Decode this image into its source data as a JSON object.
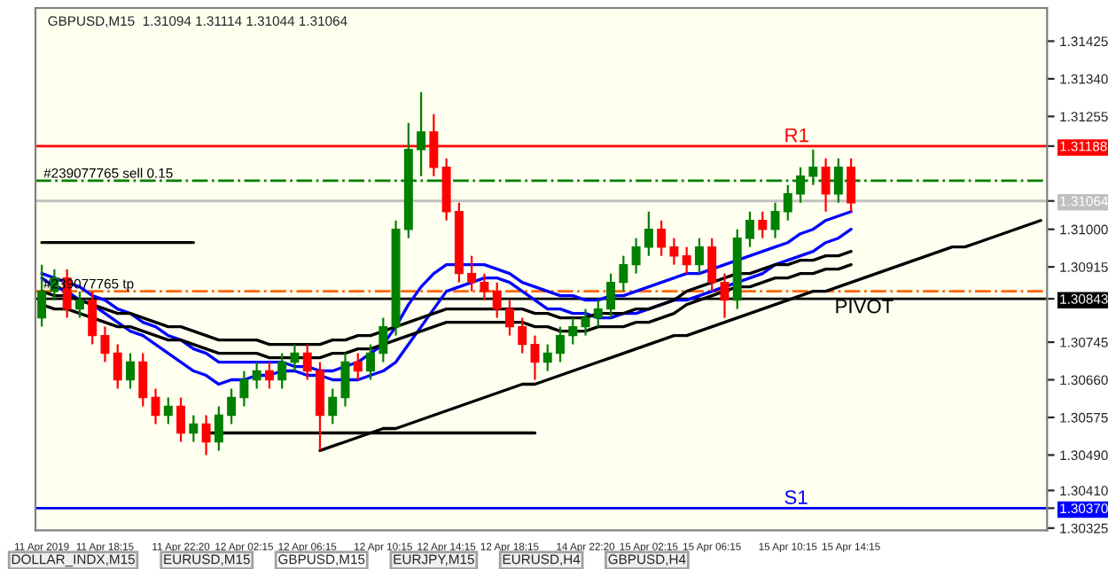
{
  "chart_data": {
    "type": "candlestick",
    "title": "GBPUSD,M15  1.31094 1.31114 1.31044 1.31064",
    "categories": [
      "11 Apr 2019",
      null,
      null,
      null,
      null,
      "11 Apr 18:15",
      null,
      null,
      null,
      null,
      null,
      "11 Apr 22:20",
      null,
      null,
      null,
      null,
      "12 Apr 02:15",
      null,
      null,
      null,
      null,
      "12 Apr 06:15",
      null,
      null,
      null,
      null,
      null,
      "12 Apr 10:15",
      null,
      null,
      null,
      null,
      "12 Apr 14:15",
      null,
      null,
      null,
      null,
      "12 Apr 18:15",
      null,
      null,
      null,
      null,
      null,
      "14 Apr 22:20",
      null,
      null,
      null,
      null,
      "15 Apr 02:15",
      null,
      null,
      null,
      null,
      "15 Apr 06:15",
      null,
      null,
      null,
      null,
      null,
      "15 Apr 10:15",
      null,
      null,
      null,
      null,
      "15 Apr 14:15",
      null,
      null,
      null,
      null,
      null,
      null,
      null,
      null,
      null,
      null,
      null,
      null,
      null,
      null,
      null
    ],
    "ohlc": [
      [
        1.308,
        1.3092,
        1.3078,
        1.3086
      ],
      [
        1.3086,
        1.3091,
        1.3084,
        1.3089
      ],
      [
        1.3089,
        1.3091,
        1.308,
        1.3082
      ],
      [
        1.3082,
        1.3086,
        1.308,
        1.3084
      ],
      [
        1.3084,
        1.3086,
        1.3074,
        1.3076
      ],
      [
        1.3076,
        1.3078,
        1.307,
        1.3072
      ],
      [
        1.3072,
        1.3074,
        1.3064,
        1.3066
      ],
      [
        1.3066,
        1.3072,
        1.3064,
        1.307
      ],
      [
        1.307,
        1.3072,
        1.306,
        1.3062
      ],
      [
        1.3062,
        1.3064,
        1.3056,
        1.3058
      ],
      [
        1.3058,
        1.3062,
        1.3056,
        1.306
      ],
      [
        1.306,
        1.3062,
        1.3052,
        1.3054
      ],
      [
        1.3054,
        1.3058,
        1.3052,
        1.3056
      ],
      [
        1.3056,
        1.3058,
        1.3049,
        1.3052
      ],
      [
        1.3052,
        1.306,
        1.305,
        1.3058
      ],
      [
        1.3058,
        1.3064,
        1.3056,
        1.3062
      ],
      [
        1.3062,
        1.3068,
        1.306,
        1.3066
      ],
      [
        1.3066,
        1.307,
        1.3064,
        1.3068
      ],
      [
        1.3068,
        1.307,
        1.3064,
        1.3066
      ],
      [
        1.3066,
        1.3072,
        1.3064,
        1.307
      ],
      [
        1.307,
        1.3074,
        1.3068,
        1.3072
      ],
      [
        1.3072,
        1.3074,
        1.3066,
        1.3068
      ],
      [
        1.3068,
        1.307,
        1.305,
        1.3058
      ],
      [
        1.3058,
        1.3064,
        1.3056,
        1.3062
      ],
      [
        1.3062,
        1.3072,
        1.306,
        1.307
      ],
      [
        1.307,
        1.3072,
        1.3066,
        1.3068
      ],
      [
        1.3068,
        1.3074,
        1.3066,
        1.3072
      ],
      [
        1.3072,
        1.308,
        1.307,
        1.3078
      ],
      [
        1.3078,
        1.3102,
        1.3076,
        1.31
      ],
      [
        1.31,
        1.3124,
        1.3098,
        1.3118
      ],
      [
        1.3118,
        1.3131,
        1.3112,
        1.3122
      ],
      [
        1.3122,
        1.3126,
        1.3112,
        1.3114
      ],
      [
        1.3114,
        1.3116,
        1.3102,
        1.3104
      ],
      [
        1.3104,
        1.3106,
        1.3088,
        1.309
      ],
      [
        1.309,
        1.3094,
        1.3086,
        1.3088
      ],
      [
        1.3088,
        1.309,
        1.3084,
        1.3086
      ],
      [
        1.3086,
        1.3088,
        1.308,
        1.3082
      ],
      [
        1.3082,
        1.3084,
        1.3076,
        1.3078
      ],
      [
        1.3078,
        1.308,
        1.3072,
        1.3074
      ],
      [
        1.3074,
        1.3076,
        1.3066,
        1.307
      ],
      [
        1.307,
        1.3074,
        1.3068,
        1.3072
      ],
      [
        1.3072,
        1.3078,
        1.307,
        1.3076
      ],
      [
        1.3076,
        1.308,
        1.3074,
        1.3078
      ],
      [
        1.3078,
        1.3082,
        1.3076,
        1.308
      ],
      [
        1.308,
        1.3084,
        1.3078,
        1.3082
      ],
      [
        1.3082,
        1.309,
        1.308,
        1.3088
      ],
      [
        1.3088,
        1.3094,
        1.3086,
        1.3092
      ],
      [
        1.3092,
        1.3098,
        1.309,
        1.3096
      ],
      [
        1.3096,
        1.3104,
        1.3094,
        1.31
      ],
      [
        1.31,
        1.3102,
        1.3094,
        1.3096
      ],
      [
        1.3096,
        1.3098,
        1.3092,
        1.3094
      ],
      [
        1.3094,
        1.3096,
        1.309,
        1.3092
      ],
      [
        1.3092,
        1.3098,
        1.309,
        1.3096
      ],
      [
        1.3096,
        1.3098,
        1.3086,
        1.3088
      ],
      [
        1.3088,
        1.309,
        1.308,
        1.3084
      ],
      [
        1.3084,
        1.31,
        1.3082,
        1.3098
      ],
      [
        1.3098,
        1.3104,
        1.3096,
        1.3102
      ],
      [
        1.3102,
        1.3104,
        1.3098,
        1.31
      ],
      [
        1.31,
        1.3106,
        1.3098,
        1.3104
      ],
      [
        1.3104,
        1.311,
        1.3102,
        1.3108
      ],
      [
        1.3108,
        1.3114,
        1.3106,
        1.3112
      ],
      [
        1.3112,
        1.3118,
        1.311,
        1.3114
      ],
      [
        1.3114,
        1.3116,
        1.3104,
        1.3108
      ],
      [
        1.3108,
        1.3116,
        1.3106,
        1.3114
      ],
      [
        1.3114,
        1.3116,
        1.3104,
        1.3106
      ],
      null,
      null,
      null,
      null,
      null,
      null,
      null,
      null,
      null,
      null,
      null,
      null,
      null,
      null,
      null
    ],
    "series": [
      {
        "type": "line",
        "color": "#0000ff",
        "values": [
          1.309,
          1.3089,
          1.3088,
          1.3087,
          1.3085,
          1.3084,
          1.3082,
          1.3081,
          1.3079,
          1.3078,
          1.3076,
          1.3075,
          1.3073,
          1.3072,
          1.307,
          1.307,
          1.307,
          1.307,
          1.307,
          1.307,
          1.3069,
          1.3069,
          1.3068,
          1.3068,
          1.3069,
          1.307,
          1.3072,
          1.3074,
          1.3078,
          1.3083,
          1.3087,
          1.309,
          1.3092,
          1.3092,
          1.3092,
          1.3092,
          1.3091,
          1.309,
          1.3088,
          1.3087,
          1.3086,
          1.3085,
          1.3085,
          1.3084,
          1.3084,
          1.3085,
          1.3085,
          1.3086,
          1.3087,
          1.3088,
          1.3089,
          1.309,
          1.309,
          1.3091,
          1.3092,
          1.3093,
          1.3094,
          1.3095,
          1.3096,
          1.3097,
          1.3099,
          1.31,
          1.3102,
          1.3103,
          1.3104,
          null,
          null,
          null,
          null,
          null,
          null,
          null,
          null,
          null,
          null,
          null,
          null,
          null,
          null,
          null
        ]
      },
      {
        "type": "line",
        "color": "#0000ff",
        "values": [
          1.3089,
          1.3087,
          1.3086,
          1.3084,
          1.3083,
          1.3081,
          1.3079,
          1.3077,
          1.3076,
          1.3074,
          1.3072,
          1.307,
          1.3068,
          1.3067,
          1.3065,
          1.3066,
          1.3066,
          1.3067,
          1.3067,
          1.3068,
          1.3068,
          1.3067,
          1.3067,
          1.3066,
          1.3066,
          1.3066,
          1.3067,
          1.3068,
          1.307,
          1.3074,
          1.3078,
          1.3082,
          1.3086,
          1.3087,
          1.3088,
          1.3089,
          1.3089,
          1.3088,
          1.3086,
          1.3084,
          1.3082,
          1.3082,
          1.3081,
          1.3081,
          1.308,
          1.308,
          1.3081,
          1.3081,
          1.3082,
          1.3083,
          1.3084,
          1.3084,
          1.3085,
          1.3086,
          1.3087,
          1.3088,
          1.3089,
          1.309,
          1.3092,
          1.3093,
          1.3094,
          1.3095,
          1.3097,
          1.3098,
          1.31,
          null,
          null,
          null,
          null,
          null,
          null,
          null,
          null,
          null,
          null,
          null,
          null,
          null,
          null,
          null
        ]
      },
      {
        "type": "line",
        "color": "#000000",
        "values": [
          1.3086,
          1.3085,
          1.3085,
          1.3084,
          1.3083,
          1.3082,
          1.3081,
          1.3081,
          1.308,
          1.3079,
          1.3078,
          1.3078,
          1.3077,
          1.3076,
          1.3075,
          1.3075,
          1.3075,
          1.3075,
          1.3074,
          1.3074,
          1.3074,
          1.3074,
          1.3074,
          1.3075,
          1.3075,
          1.3076,
          1.3076,
          1.3077,
          1.3078,
          1.3079,
          1.308,
          1.3081,
          1.3082,
          1.3082,
          1.3082,
          1.3082,
          1.3082,
          1.3082,
          1.3082,
          1.3081,
          1.3081,
          1.308,
          1.308,
          1.308,
          1.3081,
          1.3081,
          1.3081,
          1.3082,
          1.3082,
          1.3083,
          1.3084,
          1.3086,
          1.3087,
          1.3088,
          1.3089,
          1.309,
          1.309,
          1.3091,
          1.3092,
          1.3092,
          1.3093,
          1.3093,
          1.3094,
          1.3094,
          1.3095,
          null,
          null,
          null,
          null,
          null,
          null,
          null,
          null,
          null,
          null,
          null,
          null,
          null,
          null,
          null
        ]
      },
      {
        "type": "line",
        "color": "#000000",
        "values": [
          1.3083,
          1.3082,
          1.3082,
          1.3081,
          1.308,
          1.3079,
          1.3078,
          1.3078,
          1.3077,
          1.3076,
          1.3075,
          1.3075,
          1.3074,
          1.3073,
          1.3072,
          1.3072,
          1.3072,
          1.3072,
          1.3071,
          1.3071,
          1.3071,
          1.3071,
          1.3071,
          1.3072,
          1.3072,
          1.3073,
          1.3073,
          1.3074,
          1.3075,
          1.3076,
          1.3077,
          1.3078,
          1.3079,
          1.3079,
          1.3079,
          1.3079,
          1.3079,
          1.3079,
          1.3079,
          1.3078,
          1.3078,
          1.3077,
          1.3077,
          1.3077,
          1.3078,
          1.3078,
          1.3078,
          1.3079,
          1.3079,
          1.308,
          1.3081,
          1.3083,
          1.3084,
          1.3085,
          1.3086,
          1.3087,
          1.3087,
          1.3088,
          1.3089,
          1.3089,
          1.309,
          1.309,
          1.3091,
          1.3091,
          1.3092,
          null,
          null,
          null,
          null,
          null,
          null,
          null,
          null,
          null,
          null,
          null,
          null,
          null,
          null,
          null
        ]
      },
      {
        "type": "line",
        "color": "#000000",
        "values": [
          null,
          null,
          null,
          null,
          null,
          null,
          null,
          null,
          null,
          null,
          null,
          null,
          null,
          null,
          null,
          null,
          null,
          null,
          null,
          null,
          null,
          null,
          1.305,
          1.3051,
          1.3052,
          1.3053,
          1.3054,
          1.3055,
          1.3055,
          1.3056,
          1.3057,
          1.3058,
          1.3059,
          1.306,
          1.3061,
          1.3062,
          1.3063,
          1.3064,
          1.3065,
          1.3065,
          1.3066,
          1.3067,
          1.3068,
          1.3069,
          1.307,
          1.3071,
          1.3072,
          1.3073,
          1.3074,
          1.3075,
          1.3076,
          1.3076,
          1.3077,
          1.3078,
          1.3079,
          1.308,
          1.3081,
          1.3082,
          1.3083,
          1.3084,
          1.3085,
          1.3086,
          1.3086,
          1.3087,
          1.3088,
          1.3089,
          1.309,
          1.3091,
          1.3092,
          1.3093,
          1.3094,
          1.3095,
          1.3096,
          1.3096,
          1.3097,
          1.3098,
          1.3099,
          1.31,
          1.3101,
          1.3102
        ]
      },
      {
        "type": "line",
        "color": "#000000",
        "values": [
          1.3097,
          1.3097,
          1.3097,
          1.3097,
          1.3097,
          1.3097,
          1.3097,
          1.3097,
          1.3097,
          1.3097,
          1.3097,
          1.3097,
          1.3097,
          null,
          null,
          null,
          null,
          null,
          null,
          null,
          null,
          null,
          null,
          null,
          null,
          null,
          null,
          null,
          null,
          null,
          null,
          null,
          null,
          null,
          null,
          null,
          null,
          null,
          null,
          null,
          null,
          null,
          null,
          null,
          null,
          null,
          null,
          null,
          null,
          null,
          null,
          null,
          null,
          null,
          null,
          null,
          null,
          null,
          null,
          null,
          null,
          null,
          null,
          null,
          null,
          null,
          null,
          null,
          null,
          null,
          null,
          null,
          null,
          null,
          null,
          null,
          null,
          null,
          null,
          null
        ]
      },
      {
        "type": "line",
        "color": "#000000",
        "values": [
          null,
          null,
          null,
          null,
          null,
          null,
          null,
          null,
          null,
          null,
          null,
          null,
          null,
          1.3054,
          1.3054,
          1.3054,
          1.3054,
          1.3054,
          1.3054,
          1.3054,
          1.3054,
          1.3054,
          1.3054,
          1.3054,
          1.3054,
          1.3054,
          1.3054,
          1.3054,
          1.3054,
          1.3054,
          1.3054,
          1.3054,
          1.3054,
          1.3054,
          1.3054,
          1.3054,
          1.3054,
          1.3054,
          1.3054,
          1.3054,
          null,
          null,
          null,
          null,
          null,
          null,
          null,
          null,
          null,
          null,
          null,
          null,
          null,
          null,
          null,
          null,
          null,
          null,
          null,
          null,
          null,
          null,
          null,
          null,
          null,
          null,
          null,
          null,
          null,
          null,
          null,
          null,
          null,
          null,
          null,
          null,
          null,
          null,
          null,
          null
        ]
      }
    ],
    "ref_lines": [
      {
        "axis": "y",
        "value": 1.31188,
        "color": "#ff0000",
        "line_style": "solid",
        "label": "R1"
      },
      {
        "axis": "y",
        "value": 1.3111,
        "color": "#008000",
        "line_style": "dashed",
        "label": "#239077765 sell 0.15"
      },
      {
        "axis": "y",
        "value": 1.31064,
        "color": "#c0c0c0",
        "line_style": "solid"
      },
      {
        "axis": "y",
        "value": 1.3086,
        "color": "#ff6600",
        "line_style": "dashed",
        "label": "#239077765 tp"
      },
      {
        "axis": "y",
        "value": 1.30843,
        "color": "#000000",
        "line_style": "solid",
        "label": "PIVOT"
      },
      {
        "axis": "y",
        "value": 1.3037,
        "color": "#0000ff",
        "line_style": "solid",
        "label": "S1"
      }
    ],
    "annotations": [
      "DOLLAR_INDX,M15",
      "EURUSD,M15",
      "GBPUSD,M15",
      "EURJPY,M15",
      "EURUSD,H4",
      "GBPUSD,H4"
    ],
    "ylim": [
      1.3032,
      1.315
    ],
    "yticks": [
      {
        "value": 1.31425,
        "label": "1.31425"
      },
      {
        "value": 1.3134,
        "label": "1.31340"
      },
      {
        "value": 1.31255,
        "label": "1.31255"
      },
      {
        "value": 1.31188,
        "label": "1.31188"
      },
      {
        "value": 1.31064,
        "label": "1.31064"
      },
      {
        "value": 1.31,
        "label": "1.31000"
      },
      {
        "value": 1.30915,
        "label": "1.30915"
      },
      {
        "value": 1.30843,
        "label": "1.30843"
      },
      {
        "value": 1.30745,
        "label": "1.30745"
      },
      {
        "value": 1.3066,
        "label": "1.30660"
      },
      {
        "value": 1.30575,
        "label": "1.30575"
      },
      {
        "value": 1.3049,
        "label": "1.30490"
      },
      {
        "value": 1.3041,
        "label": "1.30410"
      },
      {
        "value": 1.3037,
        "label": "1.30370"
      },
      {
        "value": 1.30325,
        "label": "1.30325"
      }
    ],
    "grid": false,
    "legend": false
  }
}
